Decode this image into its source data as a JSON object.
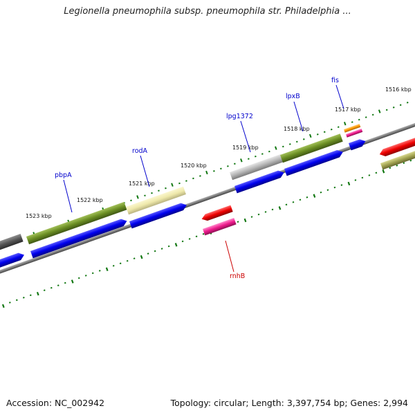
{
  "title": "Legionella pneumophila subsp. pneumophila str. Philadelphia ...",
  "footer": {
    "accession": "Accession: NC_002942",
    "topology": "Topology: circular; Length: 3,397,754 bp; Genes: 2,994"
  },
  "ticks": [
    {
      "label": "1523 kbp",
      "kbp": 1523
    },
    {
      "label": "1522 kbp",
      "kbp": 1522
    },
    {
      "label": "1521 kbp",
      "kbp": 1521
    },
    {
      "label": "1520 kbp",
      "kbp": 1520
    },
    {
      "label": "1519 kbp",
      "kbp": 1519
    },
    {
      "label": "1518 kbp",
      "kbp": 1518
    },
    {
      "label": "1517 kbp",
      "kbp": 1517
    },
    {
      "label": "1516 kbp",
      "kbp": 1516
    }
  ],
  "genes": [
    {
      "name": "pbpA",
      "strand": "forward",
      "color": "#0000cc"
    },
    {
      "name": "rodA",
      "strand": "forward",
      "color": "#0000cc"
    },
    {
      "name": "lpg1372",
      "strand": "forward",
      "color": "#0000cc"
    },
    {
      "name": "lpxB",
      "strand": "forward",
      "color": "#0000cc"
    },
    {
      "name": "fis",
      "strand": "forward",
      "color": "#0000cc"
    },
    {
      "name": "rnhB",
      "strand": "reverse",
      "color": "#cc0000"
    }
  ],
  "colors": {
    "forward_cds": "#1010ee",
    "cog_green": "#6b8e23",
    "cog_pale_yellow": "#eee8aa",
    "cog_gray": "#b0b0b0",
    "cog_dark_gray": "#555555",
    "reverse_red": "#ee0000",
    "reverse_magenta": "#ee1a8c",
    "reverse_olive": "#a3a352",
    "orange": "#ff9900",
    "backbone": "#808080",
    "tick_green": "#117711"
  }
}
